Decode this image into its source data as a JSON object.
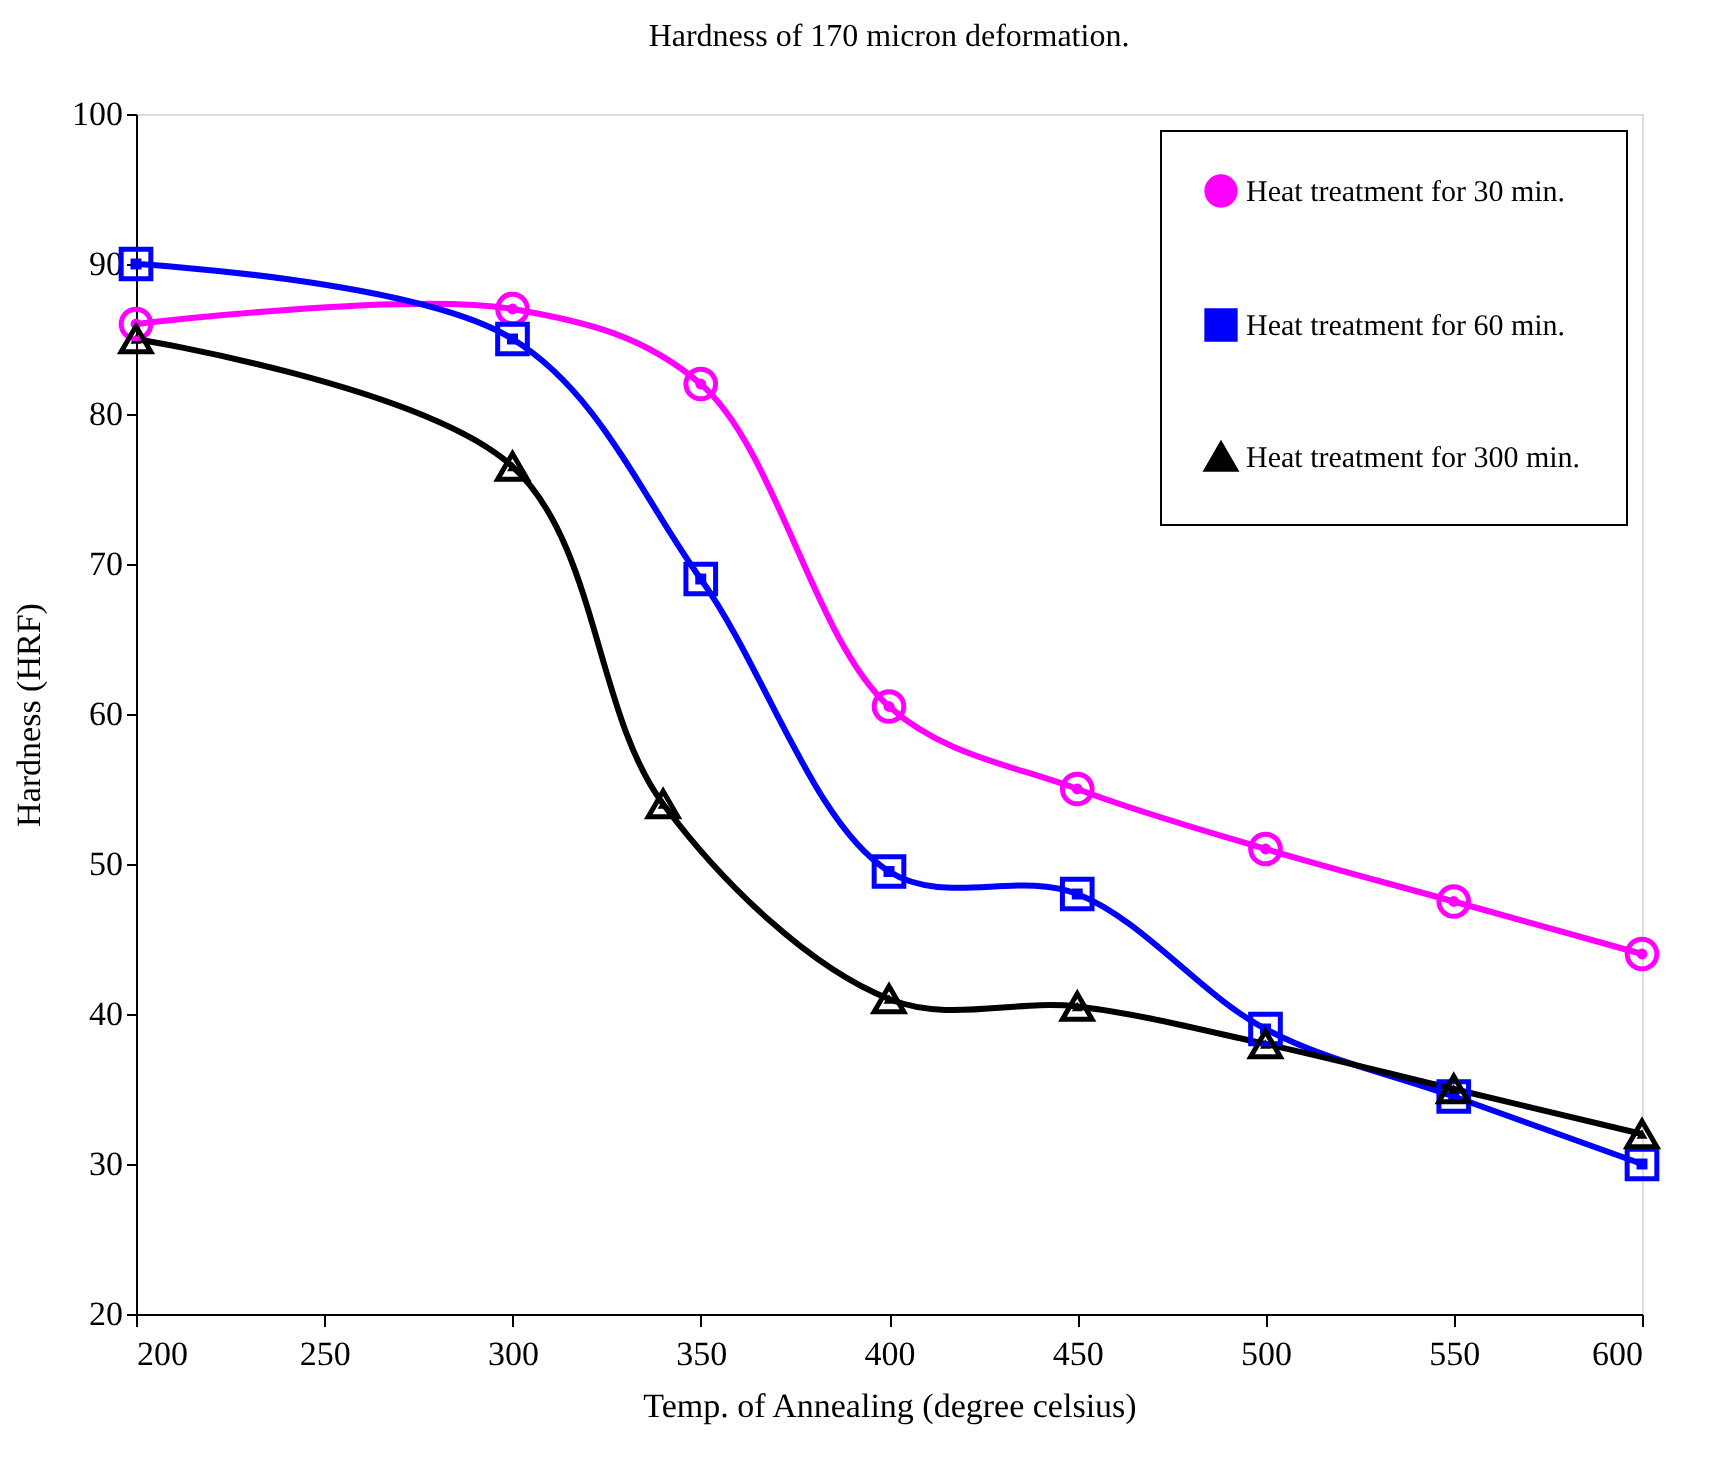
{
  "chart_data": {
    "type": "line",
    "title": "Hardness of 170 micron deformation.",
    "xlabel": "Temp. of Annealing (degree celsius)",
    "ylabel": "Hardness (HRF)",
    "series": [
      {
        "name": "Heat treatment for 30 min.",
        "color": "#ff00ff",
        "marker": "circle",
        "x": [
          200,
          300,
          350,
          400,
          450,
          500,
          550,
          600
        ],
        "values": [
          86,
          87,
          82,
          60.5,
          55,
          51,
          47.5,
          44
        ]
      },
      {
        "name": "Heat treatment for 60 min.",
        "color": "#0000ff",
        "marker": "square",
        "x": [
          200,
          300,
          350,
          400,
          450,
          500,
          550,
          600
        ],
        "values": [
          90,
          85,
          69,
          49.5,
          48,
          39,
          34.5,
          30
        ]
      },
      {
        "name": "Heat treatment for 300 min.",
        "color": "#000000",
        "marker": "triangle",
        "x": [
          200,
          300,
          340,
          400,
          450,
          500,
          550,
          600
        ],
        "values": [
          85,
          76.5,
          54,
          41,
          40.5,
          38,
          35,
          32
        ]
      }
    ],
    "xlim": [
      200,
      600
    ],
    "xticks": [
      200,
      250,
      300,
      350,
      400,
      450,
      500,
      550,
      600
    ],
    "ylim": [
      20,
      100
    ],
    "yticks": [
      20,
      30,
      40,
      50,
      60,
      70,
      80,
      90,
      100
    ],
    "grid": false,
    "legend": "top right",
    "line_style": "solid"
  }
}
